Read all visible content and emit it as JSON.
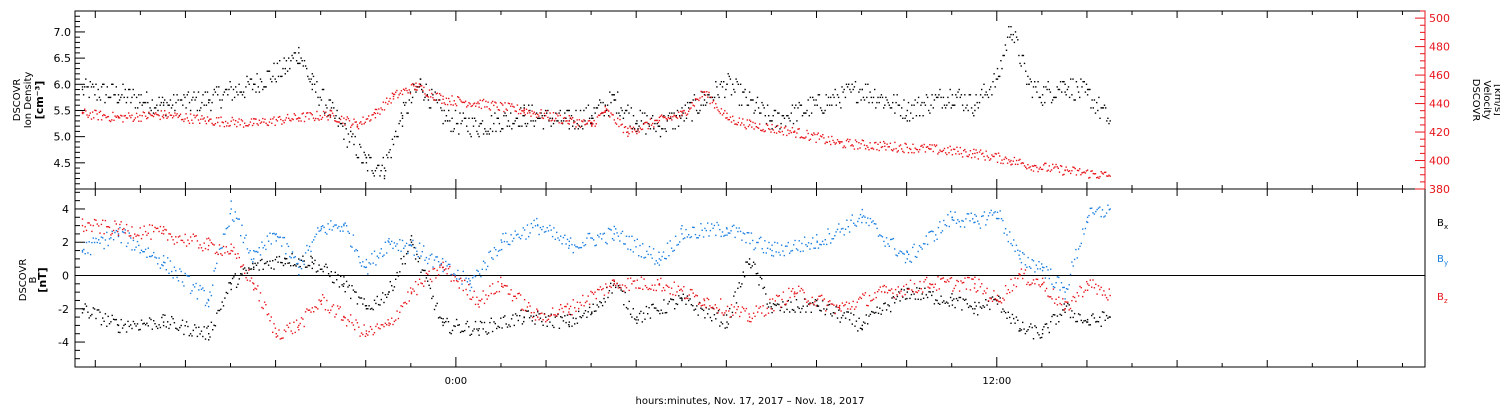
{
  "figure": {
    "xlabel": "hours:minutes, Nov. 17, 2017 – Nov. 18, 2017",
    "time_tick_labels": [
      "0:00",
      "12:00"
    ],
    "colors": {
      "black": "#000000",
      "red": "#e8141b",
      "blue": "#1a7ee0",
      "axis": "#000000"
    }
  },
  "chart_data": [
    {
      "type": "scatter",
      "panel": "top",
      "ylabel_left": [
        "DSCOVR",
        "Ion Density",
        "[cm⁻³]"
      ],
      "ylabel_right": [
        "DSCOVR",
        "Velocity",
        "[km/s]"
      ],
      "x_units": "hours since Nov. 17, 2017 00:00",
      "xlim": [
        -8.45,
        21.5
      ],
      "ylim_left": [
        4.0,
        7.4
      ],
      "ylim_right": [
        380,
        505
      ],
      "left_ticks": [
        4.5,
        5.0,
        5.5,
        6.0,
        6.5,
        7.0
      ],
      "left_tick_labels": [
        "4.5",
        "5.0",
        "5.5",
        "6.0",
        "6.5",
        "7.0"
      ],
      "right_ticks": [
        380,
        400,
        420,
        440,
        460,
        480,
        500
      ],
      "right_tick_labels": [
        "380",
        "400",
        "420",
        "440",
        "460",
        "480",
        "500"
      ],
      "series": [
        {
          "axis": "left",
          "color": "#000000",
          "x": [
            -8.3,
            -7.5,
            -6.5,
            -5.5,
            -4.5,
            -3.8,
            -3.5,
            -3.2,
            -2.8,
            -2.0,
            -1.6,
            -1.2,
            -0.8,
            -0.2,
            0.5,
            1.5,
            2.5,
            3.0,
            3.5,
            4.0,
            4.5,
            5.0,
            5.5,
            6.0,
            7.0,
            8.0,
            9.0,
            10.0,
            11.0,
            11.5,
            12.0,
            12.3,
            12.7,
            13.0,
            13.5,
            14.0,
            14.5
          ],
          "y": [
            5.9,
            5.8,
            5.6,
            5.7,
            6.0,
            6.3,
            6.6,
            6.0,
            5.5,
            4.5,
            4.4,
            5.4,
            6.0,
            5.3,
            5.2,
            5.4,
            5.3,
            5.4,
            5.7,
            5.3,
            5.2,
            5.4,
            5.7,
            6.0,
            5.3,
            5.6,
            5.9,
            5.5,
            5.8,
            5.6,
            6.1,
            7.1,
            6.0,
            5.8,
            6.0,
            5.8,
            5.3
          ]
        },
        {
          "axis": "right",
          "color": "#e8141b",
          "x": [
            -8.3,
            -7.5,
            -6.5,
            -5.5,
            -4.5,
            -3.5,
            -2.8,
            -2.2,
            -1.8,
            -1.4,
            -0.9,
            -0.3,
            0.5,
            1.5,
            2.5,
            3.0,
            3.3,
            3.8,
            4.5,
            5.0,
            5.5,
            6.0,
            6.5,
            7.5,
            8.5,
            9.5,
            10.5,
            11.5,
            12.3,
            12.8,
            13.5,
            14.5
          ],
          "y": [
            433,
            430,
            432,
            428,
            426,
            430,
            432,
            425,
            433,
            445,
            452,
            443,
            440,
            435,
            428,
            425,
            435,
            420,
            428,
            432,
            448,
            430,
            425,
            420,
            412,
            410,
            408,
            405,
            400,
            396,
            393,
            389
          ]
        }
      ]
    },
    {
      "type": "scatter",
      "panel": "bottom",
      "ylabel_left": [
        "DSCOVR",
        "B",
        "[nT]"
      ],
      "x_units": "hours since Nov. 17, 2017 00:00",
      "xlim": [
        -8.45,
        21.5
      ],
      "ylim": [
        -5.5,
        5.2
      ],
      "left_ticks": [
        -4,
        -2,
        0,
        2,
        4
      ],
      "left_tick_labels": [
        "-4",
        "-2",
        "0",
        "2",
        "4"
      ],
      "zero_line": true,
      "series": [
        {
          "name": "B",
          "subscript": "x",
          "color": "#000000",
          "x": [
            -8.3,
            -7.5,
            -6.5,
            -5.5,
            -5.0,
            -4.5,
            -3.8,
            -3.2,
            -2.5,
            -2.0,
            -1.5,
            -1.0,
            -0.3,
            0.5,
            1.5,
            2.5,
            3.0,
            3.5,
            4.0,
            5.0,
            6.0,
            6.5,
            7.0,
            8.0,
            9.0,
            10.0,
            11.0,
            11.5,
            12.0,
            12.5,
            13.0,
            13.5,
            14.0,
            14.5
          ],
          "y": [
            -2.0,
            -3.0,
            -2.8,
            -3.5,
            -0.5,
            0.5,
            1.0,
            0.8,
            -0.5,
            -2.0,
            -1.0,
            2.0,
            -3.0,
            -3.2,
            -2.5,
            -2.8,
            -2.2,
            -0.5,
            -2.5,
            -1.5,
            -2.8,
            1.0,
            -2.0,
            -1.8,
            -3.0,
            -1.0,
            -1.5,
            -2.0,
            -1.5,
            -3.2,
            -3.5,
            -2.0,
            -2.8,
            -2.5
          ]
        },
        {
          "name": "B",
          "subscript": "y",
          "color": "#1a7ee0",
          "x": [
            -8.3,
            -7.5,
            -6.5,
            -5.5,
            -5.0,
            -4.5,
            -4.0,
            -3.5,
            -3.0,
            -2.5,
            -2.0,
            -1.5,
            -1.0,
            -0.3,
            0.3,
            1.0,
            1.8,
            2.5,
            3.5,
            4.5,
            5.0,
            6.0,
            7.0,
            8.0,
            9.0,
            10.0,
            11.0,
            11.5,
            12.0,
            12.5,
            13.0,
            13.5,
            14.0,
            14.5
          ],
          "y": [
            1.5,
            2.5,
            0.8,
            -1.5,
            4.0,
            1.0,
            2.5,
            0.5,
            2.8,
            3.0,
            0.5,
            2.0,
            1.8,
            0.5,
            -0.5,
            2.0,
            3.0,
            1.8,
            2.5,
            1.0,
            2.5,
            2.8,
            1.5,
            2.0,
            3.5,
            1.0,
            3.5,
            3.2,
            3.8,
            1.0,
            0.5,
            -1.0,
            3.5,
            4.0
          ]
        },
        {
          "name": "B",
          "subscript": "z",
          "color": "#e8141b",
          "x": [
            -8.3,
            -7.5,
            -6.5,
            -5.5,
            -5.0,
            -4.5,
            -4.0,
            -3.5,
            -3.0,
            -2.5,
            -2.0,
            -1.5,
            -1.0,
            -0.3,
            0.5,
            1.0,
            1.8,
            2.5,
            3.5,
            4.5,
            5.5,
            6.5,
            7.5,
            8.5,
            9.5,
            10.5,
            11.5,
            12.0,
            12.5,
            13.0,
            13.5,
            14.0,
            14.5
          ],
          "y": [
            3.0,
            2.8,
            2.5,
            1.8,
            1.5,
            -0.5,
            -3.5,
            -3.0,
            -1.5,
            -2.5,
            -3.5,
            -3.0,
            -1.0,
            0.5,
            -1.5,
            -0.5,
            -2.5,
            -2.0,
            -0.5,
            -0.5,
            -1.5,
            -2.5,
            -1.0,
            -2.0,
            -1.0,
            -0.5,
            -0.5,
            -1.5,
            0.0,
            -0.5,
            -2.0,
            -0.5,
            -1.2
          ]
        }
      ]
    }
  ]
}
